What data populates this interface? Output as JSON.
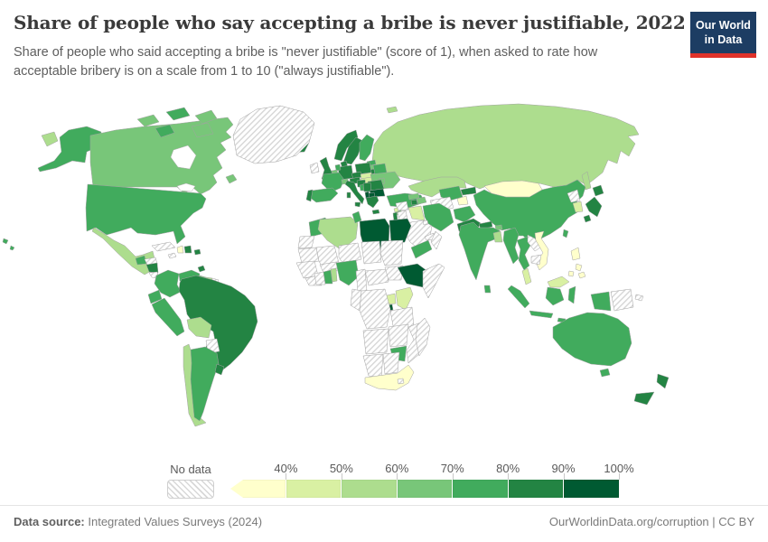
{
  "header": {
    "title": "Share of people who say accepting a bribe is never justifiable, 2022",
    "subtitle": "Share of people who said accepting a bribe is \"never justifiable\" (score of 1), when asked to rate how acceptable bribery is on a scale from 1 to 10 (\"always justifiable\").",
    "logo": {
      "line1": "Our World",
      "line2": "in Data"
    }
  },
  "colors": {
    "logo_bg": "#1d3d63",
    "logo_stripe": "#e0322a",
    "title_text": "#3a3a3a",
    "subtitle_text": "#5e5e5e",
    "footer_text": "#7a7a7a"
  },
  "legend": {
    "no_data_label": "No data",
    "tick_labels": [
      "40%",
      "50%",
      "60%",
      "70%",
      "80%",
      "90%",
      "100%"
    ],
    "bucket_colors": [
      "#ffffcc",
      "#d9f0a3",
      "#addd8e",
      "#78c679",
      "#41ab5d",
      "#238443",
      "#005a32"
    ]
  },
  "map": {
    "no_data_key": "no-data",
    "countries": {
      "russia-west-tip": "#addd8e",
      "alaska": "#41ab5d",
      "hawaii": "#41ab5d",
      "canada": "#78c679",
      "canada-island-1": "#78c679",
      "canada-island-2": "#41ab5d",
      "canada-island-3": "#78c679",
      "canada-island-4": "#41ab5d",
      "canada-island-baffin": "#78c679",
      "newfoundland": "#78c679",
      "greenland": "no-data",
      "iceland": "#238443",
      "usa": "#41ab5d",
      "mexico": "#addd8e",
      "guatemala": "#41ab5d",
      "honduras": "no-data",
      "nicaragua": "#238443",
      "costa-rica": "no-data",
      "panama": "no-data",
      "cuba": "no-data",
      "jamaica": "no-data",
      "haiti": "#ffffcc",
      "dominican-republic": "#238443",
      "puerto-rico": "#238443",
      "trinidad-tobago": "#238443",
      "colombia": "#41ab5d",
      "venezuela": "#41ab5d",
      "guyana": "#78c679",
      "suriname": "#addd8e",
      "french-guiana": "no-data",
      "ecuador": "#41ab5d",
      "peru": "#41ab5d",
      "brazil": "#238443",
      "bolivia": "#addd8e",
      "paraguay": "no-data",
      "chile": "#addd8e",
      "argentina": "#41ab5d",
      "uruguay": "#238443",
      "ireland": "no-data",
      "uk": "#238443",
      "norway": "#238443",
      "sweden": "#238443",
      "finland": "#41ab5d",
      "denmark": "#238443",
      "estonia": "#41ab5d",
      "latvia": "#78c679",
      "lithuania": "#238443",
      "poland": "#238443",
      "germany": "#238443",
      "netherlands": "#41ab5d",
      "belgium": "#78c679",
      "france": "#41ab5d",
      "spain": "#41ab5d",
      "portugal": "#238443",
      "switzerland": "#78c679",
      "austria": "#238443",
      "czechia": "#238443",
      "slovakia": "#d9f0a3",
      "hungary": "#d9f0a3",
      "italy": "#238443",
      "sicily": "#238443",
      "sardinia": "#238443",
      "belarus": "#41ab5d",
      "ukraine": "#78c679",
      "moldova": "#78c679",
      "romania": "#238443",
      "croatia": "#238443",
      "serbia": "#238443",
      "bosnia": "#41ab5d",
      "bulgaria": "#005a32",
      "albania": "#005a32",
      "north-macedonia": "#005a32",
      "greece": "#238443",
      "crete": "#238443",
      "turkey": "#41ab5d",
      "cyprus": "#78c679",
      "svalbard": "#addd8e",
      "morocco": "#41ab5d",
      "western-sahara": "no-data",
      "algeria": "#addd8e",
      "tunisia": "#41ab5d",
      "libya": "#005a32",
      "egypt": "#005a32",
      "mauritania": "no-data",
      "mali": "no-data",
      "niger": "no-data",
      "chad": "no-data",
      "sudan": "no-data",
      "senegal-guinea": "no-data",
      "sierra-leone-liberia": "no-data",
      "ivory-coast": "no-data",
      "burkina-faso": "no-data",
      "ghana": "#41ab5d",
      "benin-togo": "#addd8e",
      "nigeria": "#41ab5d",
      "cameroon": "no-data",
      "central-african-republic": "no-data",
      "south-sudan": "no-data",
      "ethiopia": "#005a32",
      "somalia": "no-data",
      "uganda": "#d9f0a3",
      "rwanda-burundi": "#005a32",
      "kenya": "#d9f0a3",
      "drc": "no-data",
      "congo-gabon": "no-data",
      "tanzania": "no-data",
      "angola": "no-data",
      "zambia": "no-data",
      "mozambique": "no-data",
      "zimbabwe": "#41ab5d",
      "namibia": "no-data",
      "botswana": "no-data",
      "south-africa": "#ffffcc",
      "lesotho": "no-data",
      "madagascar": "no-data",
      "syria": "no-data",
      "lebanon": "#d9f0a3",
      "israel": "#238443",
      "jordan": "no-data",
      "iraq": "#d9f0a3",
      "saudi-arabia": "no-data",
      "kuwait": "no-data",
      "yemen": "#41ab5d",
      "oman": "no-data",
      "uae": "no-data",
      "georgia": "#78c679",
      "armenia": "#238443",
      "azerbaijan": "#78c679",
      "iran": "#41ab5d",
      "turkmenistan": "no-data",
      "uzbekistan": "#41ab5d",
      "tajikistan": "#ffffcc",
      "kyrgyzstan": "#238443",
      "afghanistan": "#41ab5d",
      "pakistan": "#238443",
      "kazakhstan": "#addd8e",
      "russia": "#addd8e",
      "sakhalin": "#addd8e",
      "mongolia": "#ffffcc",
      "china": "#41ab5d",
      "taiwan": "#41ab5d",
      "north-korea": "no-data",
      "south-korea": "#d9f0a3",
      "japan": "#238443",
      "nepal": "#238443",
      "bhutan": "#78c679",
      "india": "#41ab5d",
      "bangladesh": "#addd8e",
      "sri-lanka": "#41ab5d",
      "myanmar": "#41ab5d",
      "thailand": "#41ab5d",
      "laos": "no-data",
      "vietnam": "#ffffcc",
      "cambodia": "no-data",
      "malaysia-peninsula": "#d9f0a3",
      "malaysia-borneo": "#d9f0a3",
      "philippines": "#ffffcc",
      "indonesia": "#41ab5d",
      "papua-new-guinea": "no-data",
      "australia": "#41ab5d",
      "tasmania": "#41ab5d",
      "new-zealand": "#238443"
    }
  },
  "footer": {
    "source_label": "Data source:",
    "source_value": " Integrated Values Surveys (2024)",
    "credit": "OurWorldinData.org/corruption | CC BY"
  }
}
